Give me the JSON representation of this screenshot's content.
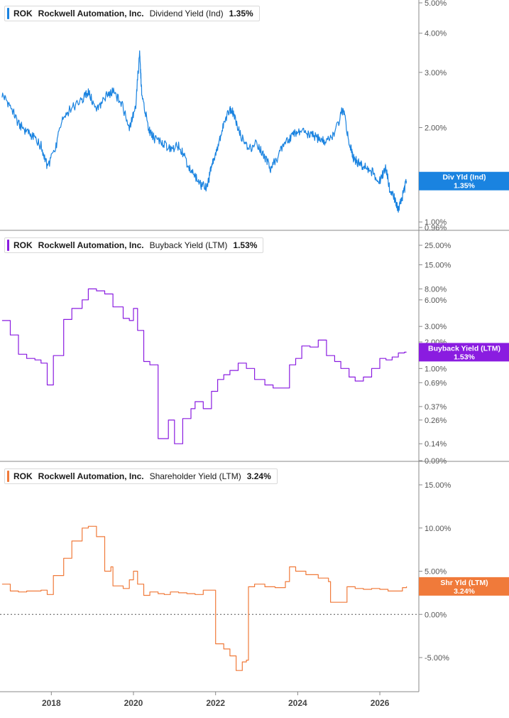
{
  "colors": {
    "dividend": "#1a83e0",
    "buyback": "#8a1ce0",
    "shareholder": "#f07a3a",
    "axis": "#888888",
    "grid": "#bfbfbf"
  },
  "chart_data": [
    {
      "type": "line",
      "legend": {
        "ticker": "ROK",
        "company": "Rockwell Automation, Inc.",
        "metric": "Dividend Yield (Ind)",
        "value": "1.35%"
      },
      "y_scale": "log",
      "ylim": [
        0.96,
        5.0
      ],
      "yticks": [
        "5.00%",
        "4.00%",
        "3.00%",
        "2.00%",
        "1.00%",
        "0.96%"
      ],
      "ytick_values": [
        5.0,
        4.0,
        3.0,
        2.0,
        1.0,
        0.96
      ],
      "badge": {
        "label": "Div Yld (Ind)",
        "value": "1.35%",
        "y": 1.35,
        "color": "#1a83e0"
      },
      "series": [
        {
          "x": [
            2016.8,
            2017.0,
            2017.2,
            2017.4,
            2017.6,
            2017.75,
            2017.9,
            2018.1,
            2018.3,
            2018.5,
            2018.75,
            2018.9,
            2019.1,
            2019.3,
            2019.5,
            2019.7,
            2019.9,
            2020.05,
            2020.15,
            2020.2,
            2020.35,
            2020.5,
            2020.7,
            2020.9,
            2021.1,
            2021.3,
            2021.5,
            2021.65,
            2021.8,
            2021.9,
            2022.05,
            2022.2,
            2022.35,
            2022.45,
            2022.6,
            2022.8,
            2023.0,
            2023.2,
            2023.35,
            2023.5,
            2023.7,
            2023.9,
            2024.1,
            2024.3,
            2024.5,
            2024.7,
            2024.9,
            2025.1,
            2025.25,
            2025.35,
            2025.45,
            2025.6,
            2025.8,
            2026.0,
            2026.15,
            2026.25,
            2026.35,
            2026.45,
            2026.55,
            2026.65
          ],
          "y": [
            2.55,
            2.35,
            2.05,
            1.95,
            1.85,
            1.75,
            1.5,
            1.7,
            2.2,
            2.3,
            2.45,
            2.6,
            2.25,
            2.5,
            2.6,
            2.4,
            2.0,
            2.3,
            3.4,
            2.6,
            2.0,
            1.85,
            1.8,
            1.7,
            1.75,
            1.55,
            1.4,
            1.3,
            1.3,
            1.5,
            1.75,
            2.05,
            2.3,
            2.2,
            1.9,
            1.7,
            1.8,
            1.6,
            1.48,
            1.6,
            1.8,
            1.9,
            1.95,
            1.9,
            1.85,
            1.8,
            1.9,
            2.3,
            1.8,
            1.6,
            1.55,
            1.5,
            1.45,
            1.35,
            1.5,
            1.25,
            1.2,
            1.1,
            1.2,
            1.35
          ]
        }
      ]
    },
    {
      "type": "line",
      "legend": {
        "ticker": "ROK",
        "company": "Rockwell Automation, Inc.",
        "metric": "Buyback Yield (LTM)",
        "value": "1.53%"
      },
      "y_scale": "log",
      "ylim": [
        0.09,
        25.0
      ],
      "yticks": [
        "25.00%",
        "15.00%",
        "8.00%",
        "6.00%",
        "3.00%",
        "2.00%",
        "1.00%",
        "0.69%",
        "0.37%",
        "0.26%",
        "0.14%",
        "0.09%"
      ],
      "ytick_values": [
        25.0,
        15.0,
        8.0,
        6.0,
        3.0,
        2.0,
        1.0,
        0.69,
        0.37,
        0.26,
        0.14,
        0.09
      ],
      "badge": {
        "label": "Buyback Yield (LTM)",
        "value": "1.53%",
        "y": 1.53,
        "color": "#8a1ce0"
      },
      "series": [
        {
          "x": [
            2016.8,
            2017.0,
            2017.2,
            2017.4,
            2017.6,
            2017.75,
            2017.9,
            2018.05,
            2018.3,
            2018.5,
            2018.75,
            2018.9,
            2019.1,
            2019.3,
            2019.5,
            2019.75,
            2019.9,
            2020.0,
            2020.1,
            2020.25,
            2020.4,
            2020.6,
            2020.75,
            2020.85,
            2021.0,
            2021.2,
            2021.4,
            2021.5,
            2021.7,
            2021.9,
            2022.05,
            2022.2,
            2022.35,
            2022.55,
            2022.75,
            2022.95,
            2023.2,
            2023.4,
            2023.6,
            2023.8,
            2023.95,
            2024.1,
            2024.3,
            2024.5,
            2024.7,
            2024.9,
            2025.05,
            2025.25,
            2025.4,
            2025.6,
            2025.8,
            2026.0,
            2026.15,
            2026.3,
            2026.45,
            2026.6,
            2026.65
          ],
          "y": [
            3.5,
            2.4,
            1.45,
            1.3,
            1.25,
            1.15,
            0.65,
            1.4,
            3.6,
            4.8,
            6.0,
            8.0,
            7.6,
            7.0,
            5.0,
            3.7,
            3.5,
            4.8,
            2.7,
            1.2,
            1.1,
            0.16,
            0.16,
            0.26,
            0.14,
            0.27,
            0.35,
            0.42,
            0.35,
            0.55,
            0.75,
            0.85,
            0.95,
            1.15,
            1.0,
            0.75,
            0.65,
            0.6,
            0.6,
            1.1,
            1.3,
            1.8,
            1.75,
            2.1,
            1.4,
            1.2,
            1.0,
            0.8,
            0.72,
            0.8,
            1.0,
            1.3,
            1.25,
            1.35,
            1.5,
            1.53,
            1.53
          ]
        }
      ]
    },
    {
      "type": "line",
      "legend": {
        "ticker": "ROK",
        "company": "Rockwell Automation, Inc.",
        "metric": "Shareholder Yield (LTM)",
        "value": "3.24%"
      },
      "y_scale": "linear",
      "ylim": [
        -9.0,
        16.5
      ],
      "yticks": [
        "15.00%",
        "10.00%",
        "5.00%",
        "0.00%",
        "-5.00%"
      ],
      "ytick_values": [
        15.0,
        10.0,
        5.0,
        0.0,
        -5.0
      ],
      "zero_line": true,
      "badge": {
        "label": "Shr Yld (LTM)",
        "value": "3.24%",
        "y": 3.24,
        "color": "#f07a3a"
      },
      "series": [
        {
          "x": [
            2016.8,
            2017.0,
            2017.2,
            2017.4,
            2017.6,
            2017.75,
            2017.9,
            2018.05,
            2018.3,
            2018.5,
            2018.75,
            2018.9,
            2019.1,
            2019.3,
            2019.45,
            2019.5,
            2019.75,
            2019.9,
            2020.0,
            2020.1,
            2020.25,
            2020.4,
            2020.6,
            2020.75,
            2020.9,
            2021.1,
            2021.3,
            2021.5,
            2021.7,
            2021.85,
            2022.0,
            2022.2,
            2022.35,
            2022.5,
            2022.65,
            2022.75,
            2022.8,
            2022.95,
            2023.2,
            2023.45,
            2023.7,
            2023.8,
            2023.95,
            2024.2,
            2024.5,
            2024.75,
            2024.8,
            2025.0,
            2025.2,
            2025.4,
            2025.6,
            2025.8,
            2026.0,
            2026.2,
            2026.4,
            2026.55,
            2026.65
          ],
          "y": [
            3.5,
            2.7,
            2.6,
            2.7,
            2.7,
            2.8,
            2.3,
            4.5,
            6.5,
            8.5,
            10.0,
            10.2,
            9.0,
            5.0,
            5.5,
            3.3,
            3.0,
            4.0,
            5.0,
            3.5,
            2.2,
            2.6,
            2.4,
            2.3,
            2.6,
            2.5,
            2.4,
            2.3,
            2.8,
            2.8,
            -3.4,
            -4.0,
            -4.8,
            -6.5,
            -5.5,
            -5.3,
            3.2,
            3.5,
            3.2,
            3.1,
            3.8,
            5.5,
            5.0,
            4.6,
            4.2,
            3.8,
            1.4,
            1.4,
            3.2,
            3.0,
            2.9,
            3.0,
            2.9,
            2.7,
            2.7,
            3.1,
            3.24
          ]
        }
      ]
    }
  ],
  "x_axis": {
    "ticks": [
      "2018",
      "2020",
      "2022",
      "2024",
      "2026"
    ],
    "tick_values": [
      2018,
      2020,
      2022,
      2024,
      2026
    ],
    "xlim": [
      2016.75,
      2026.95
    ]
  }
}
